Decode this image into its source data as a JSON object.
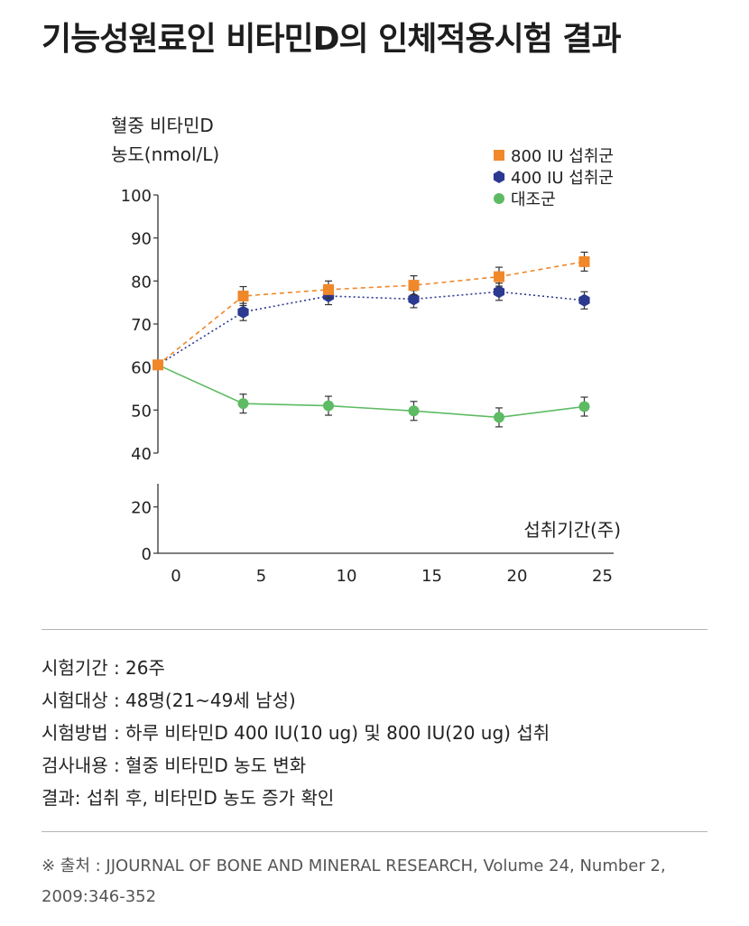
{
  "title": "기능성원료인 비타민D의 인체적용시험 결과",
  "chart_data": {
    "type": "line",
    "ylabel": [
      "혈중 비타민D",
      "농도(nmol/L)"
    ],
    "xlabel": "섭취기간(주)",
    "x": [
      0,
      5,
      10,
      15,
      20,
      25
    ],
    "yticks_upper": [
      40,
      50,
      60,
      70,
      80,
      90,
      100
    ],
    "yticks_lower": [
      0,
      20
    ],
    "ylim_upper": [
      40,
      100
    ],
    "ylim_lower": [
      0,
      30
    ],
    "axis_break": true,
    "grid": false,
    "legend_position": "top-right",
    "series": [
      {
        "name": "800 IU 섭취군",
        "marker": "square",
        "line_style": "dashed",
        "color": "#F0882A",
        "values": [
          60.5,
          76.5,
          78,
          79,
          81,
          84.5
        ],
        "error": [
          0,
          2.2,
          2,
          2.2,
          2.2,
          2.2
        ]
      },
      {
        "name": "400 IU 섭취군",
        "marker": "hexagon",
        "line_style": "dotted",
        "color": "#2B3990",
        "values": [
          60.5,
          72.8,
          76.5,
          75.8,
          77.5,
          75.5
        ],
        "error": [
          0,
          2,
          2,
          2,
          2,
          2
        ]
      },
      {
        "name": "대조군",
        "marker": "circle",
        "line_style": "solid",
        "color": "#5DBB63",
        "values": [
          60.5,
          51.5,
          51,
          49.8,
          48.3,
          50.8
        ],
        "error": [
          0,
          2.2,
          2.2,
          2.2,
          2.2,
          2.2
        ]
      }
    ]
  },
  "info": [
    "시험기간 : 26주",
    "시험대상 : 48명(21~49세 남성)",
    "시험방법 : 하루 비타민D 400 IU(10 ug) 및 800 IU(20 ug) 섭취",
    "검사내용 : 혈중 비타민D 농도 변화",
    "결과: 섭취 후, 비타민D 농도 증가 확인"
  ],
  "source": "※ 출처 : JJOURNAL OF BONE AND MINERAL RESEARCH, Volume 24, Number 2, 2009:346-352"
}
